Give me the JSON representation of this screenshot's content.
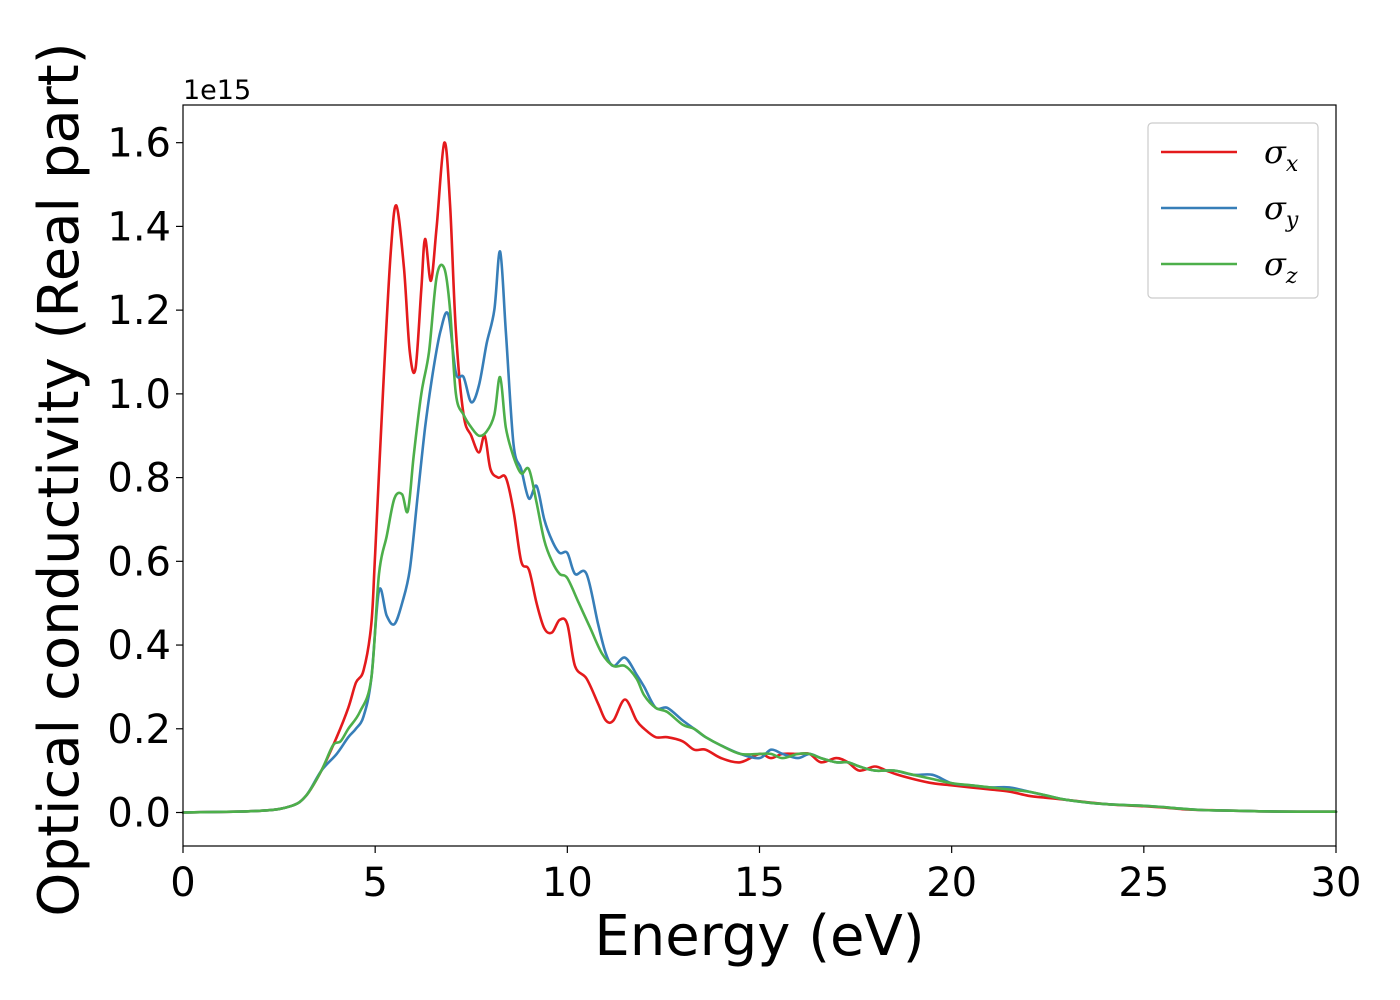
{
  "chart_data": {
    "type": "line",
    "xlabel": "Energy (eV)",
    "ylabel": "Optical conductivity (Real part)",
    "y_offset_label": "1e15",
    "xlim": [
      0,
      30
    ],
    "ylim": [
      -0.08,
      1.69
    ],
    "y_scale_factor": 1000000000000000.0,
    "x_ticks": [
      0,
      5,
      10,
      15,
      20,
      25,
      30
    ],
    "x_tick_labels": [
      "0",
      "5",
      "10",
      "15",
      "20",
      "25",
      "30"
    ],
    "y_ticks": [
      0.0,
      0.2,
      0.4,
      0.6,
      0.8,
      1.0,
      1.2,
      1.4,
      1.6
    ],
    "y_tick_labels": [
      "0.0",
      "0.2",
      "0.4",
      "0.6",
      "0.8",
      "1.0",
      "1.2",
      "1.4",
      "1.6"
    ],
    "grid": false,
    "legend_position": "top-right",
    "series": [
      {
        "name": "σx",
        "symbol": "σ",
        "subscript": "x",
        "color": "#e41a1c",
        "x": [
          0,
          2,
          2.8,
          3.2,
          3.6,
          4.0,
          4.3,
          4.5,
          4.7,
          4.9,
          5.0,
          5.2,
          5.4,
          5.55,
          5.75,
          5.9,
          6.05,
          6.2,
          6.3,
          6.45,
          6.6,
          6.8,
          6.95,
          7.1,
          7.3,
          7.5,
          7.7,
          7.85,
          8.0,
          8.2,
          8.4,
          8.6,
          8.8,
          9.0,
          9.2,
          9.4,
          9.6,
          9.8,
          10.0,
          10.2,
          10.5,
          10.8,
          11.0,
          11.2,
          11.5,
          11.8,
          12.0,
          12.3,
          12.6,
          13.0,
          13.3,
          13.6,
          14.0,
          14.5,
          15.0,
          15.3,
          15.6,
          16.0,
          16.3,
          16.6,
          17.0,
          17.3,
          17.6,
          18.0,
          18.3,
          18.6,
          19.0,
          19.5,
          20.0,
          20.5,
          21.0,
          21.5,
          22.0,
          22.5,
          23.0,
          24.0,
          25.0,
          25.5,
          26.0,
          26.5,
          27.0,
          28.0,
          29.0,
          30.0
        ],
        "y": [
          0,
          0.004,
          0.015,
          0.04,
          0.1,
          0.18,
          0.25,
          0.31,
          0.34,
          0.45,
          0.62,
          1.0,
          1.33,
          1.45,
          1.3,
          1.1,
          1.06,
          1.25,
          1.37,
          1.27,
          1.4,
          1.6,
          1.45,
          1.15,
          0.95,
          0.9,
          0.86,
          0.9,
          0.82,
          0.8,
          0.8,
          0.72,
          0.6,
          0.58,
          0.5,
          0.44,
          0.43,
          0.46,
          0.45,
          0.35,
          0.32,
          0.26,
          0.22,
          0.22,
          0.27,
          0.22,
          0.2,
          0.18,
          0.18,
          0.17,
          0.15,
          0.15,
          0.13,
          0.12,
          0.14,
          0.13,
          0.14,
          0.14,
          0.14,
          0.12,
          0.13,
          0.12,
          0.1,
          0.11,
          0.1,
          0.09,
          0.08,
          0.07,
          0.065,
          0.06,
          0.055,
          0.05,
          0.04,
          0.035,
          0.03,
          0.02,
          0.015,
          0.012,
          0.008,
          0.006,
          0.005,
          0.003,
          0.002,
          0.002
        ]
      },
      {
        "name": "σy",
        "symbol": "σ",
        "subscript": "y",
        "color": "#377eb8",
        "x": [
          0,
          2,
          2.8,
          3.2,
          3.6,
          4.0,
          4.3,
          4.5,
          4.7,
          4.9,
          5.1,
          5.3,
          5.5,
          5.7,
          5.9,
          6.1,
          6.3,
          6.5,
          6.7,
          6.9,
          7.1,
          7.3,
          7.5,
          7.7,
          7.9,
          8.1,
          8.25,
          8.4,
          8.6,
          8.8,
          9.0,
          9.2,
          9.4,
          9.6,
          9.8,
          10.0,
          10.2,
          10.5,
          10.8,
          11.0,
          11.2,
          11.5,
          11.8,
          12.0,
          12.3,
          12.6,
          13.0,
          13.3,
          13.6,
          14.0,
          14.5,
          15.0,
          15.3,
          15.6,
          16.0,
          16.3,
          16.6,
          17.0,
          17.3,
          17.6,
          18.0,
          18.5,
          19.0,
          19.5,
          20.0,
          20.5,
          21.0,
          21.5,
          22.0,
          22.5,
          23.0,
          24.0,
          25.0,
          25.5,
          26.0,
          26.5,
          27.0,
          28.0,
          29.0,
          30.0
        ],
        "y": [
          0,
          0.004,
          0.015,
          0.04,
          0.1,
          0.14,
          0.18,
          0.2,
          0.23,
          0.32,
          0.53,
          0.47,
          0.45,
          0.5,
          0.58,
          0.75,
          0.92,
          1.05,
          1.15,
          1.19,
          1.05,
          1.04,
          0.98,
          1.02,
          1.12,
          1.2,
          1.34,
          1.15,
          0.88,
          0.82,
          0.75,
          0.78,
          0.7,
          0.65,
          0.62,
          0.62,
          0.57,
          0.57,
          0.45,
          0.38,
          0.35,
          0.37,
          0.33,
          0.3,
          0.25,
          0.25,
          0.22,
          0.2,
          0.18,
          0.16,
          0.14,
          0.13,
          0.15,
          0.14,
          0.13,
          0.14,
          0.13,
          0.12,
          0.12,
          0.11,
          0.1,
          0.1,
          0.09,
          0.09,
          0.07,
          0.065,
          0.06,
          0.06,
          0.05,
          0.04,
          0.03,
          0.02,
          0.016,
          0.013,
          0.009,
          0.006,
          0.005,
          0.003,
          0.002,
          0.002
        ]
      },
      {
        "name": "σz",
        "symbol": "σ",
        "subscript": "z",
        "color": "#4daf4a",
        "x": [
          0,
          2,
          2.8,
          3.2,
          3.6,
          3.9,
          4.1,
          4.3,
          4.6,
          4.9,
          5.1,
          5.3,
          5.5,
          5.7,
          5.85,
          6.0,
          6.2,
          6.4,
          6.6,
          6.8,
          6.95,
          7.1,
          7.3,
          7.5,
          7.7,
          7.9,
          8.1,
          8.25,
          8.4,
          8.6,
          8.8,
          9.0,
          9.2,
          9.4,
          9.6,
          9.8,
          10.0,
          10.3,
          10.6,
          10.9,
          11.2,
          11.5,
          11.8,
          12.0,
          12.3,
          12.6,
          13.0,
          13.3,
          13.6,
          14.0,
          14.5,
          15.0,
          15.3,
          15.6,
          16.0,
          16.3,
          16.6,
          17.0,
          17.3,
          17.6,
          18.0,
          18.5,
          19.0,
          19.5,
          20.0,
          20.5,
          21.0,
          21.5,
          22.0,
          22.5,
          23.0,
          24.0,
          25.0,
          25.5,
          26.0,
          26.5,
          27.0,
          28.0,
          29.0,
          30.0
        ],
        "y": [
          0,
          0.004,
          0.015,
          0.04,
          0.1,
          0.16,
          0.17,
          0.2,
          0.24,
          0.32,
          0.57,
          0.66,
          0.75,
          0.76,
          0.72,
          0.85,
          1.0,
          1.1,
          1.28,
          1.3,
          1.2,
          1.0,
          0.95,
          0.92,
          0.9,
          0.91,
          0.95,
          1.04,
          0.92,
          0.85,
          0.81,
          0.82,
          0.74,
          0.65,
          0.6,
          0.57,
          0.56,
          0.5,
          0.44,
          0.38,
          0.35,
          0.35,
          0.32,
          0.28,
          0.25,
          0.24,
          0.21,
          0.2,
          0.18,
          0.16,
          0.14,
          0.14,
          0.14,
          0.13,
          0.14,
          0.14,
          0.13,
          0.12,
          0.12,
          0.11,
          0.1,
          0.1,
          0.09,
          0.08,
          0.07,
          0.065,
          0.06,
          0.055,
          0.05,
          0.04,
          0.03,
          0.02,
          0.016,
          0.013,
          0.009,
          0.006,
          0.005,
          0.003,
          0.002,
          0.002
        ]
      }
    ]
  }
}
